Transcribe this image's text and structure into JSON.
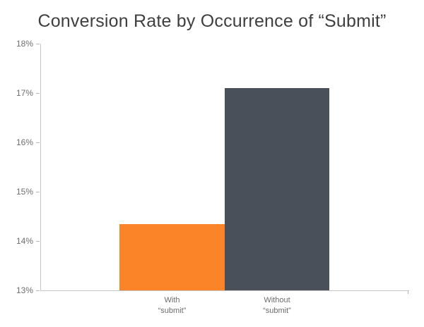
{
  "chart_data": {
    "type": "bar",
    "title": "Conversion Rate by Occurrence of “Submit”",
    "categories": [
      "With “submit”",
      "Without “submit”"
    ],
    "values": [
      14.35,
      17.1
    ],
    "value_unit": "%",
    "colors": [
      "#FC8428",
      "#4A505A"
    ],
    "ylim": [
      13,
      18
    ],
    "ytick_labels": [
      "18%",
      "17%",
      "16%",
      "15%",
      "14%",
      "13%"
    ],
    "xtick_labels": [
      {
        "line1": "With",
        "line2": "“submit”"
      },
      {
        "line1": "Without",
        "line2": "“submit”"
      }
    ],
    "xlabel": "",
    "ylabel": "",
    "grid": false,
    "legend": false,
    "axis_color": "#c6c6c6",
    "tick_color": "#b8b8b8",
    "label_color": "#6b6b6b",
    "title_color": "#3f3f3f"
  }
}
